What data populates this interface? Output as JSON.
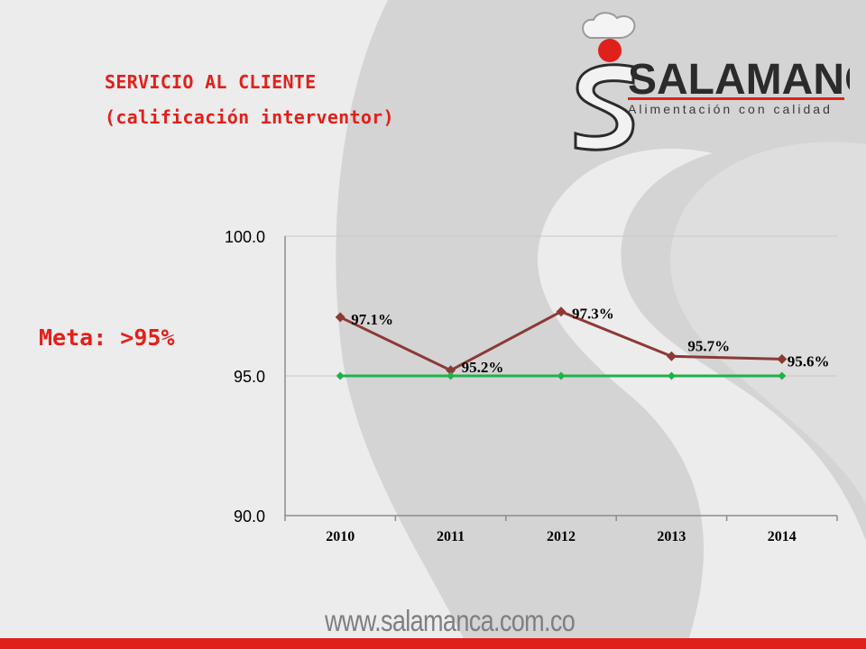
{
  "slide": {
    "title_line1": "SERVICIO AL CLIENTE",
    "title_line2": "(calificación interventor)",
    "meta": "Meta: >95%",
    "website": "www.salamanca.com.co"
  },
  "logo": {
    "brand": "SALAMANCA",
    "tagline": "Alimentación con calidad",
    "brand_color": "#e0201b",
    "dark_color": "#2b2b2b"
  },
  "colors": {
    "accent": "#e0201b",
    "series_score": "#8b3a36",
    "series_goal": "#1fb24a",
    "background": "#ececec"
  },
  "chart_data": {
    "type": "line",
    "categories": [
      "2010",
      "2011",
      "2012",
      "2013",
      "2014"
    ],
    "ylim": [
      90,
      100
    ],
    "yticks": [
      90,
      95,
      100
    ],
    "ytick_labels": [
      "90.0",
      "95.0",
      "100.0"
    ],
    "series": [
      {
        "values": [
          97.1,
          95.2,
          97.3,
          95.7,
          95.6
        ],
        "labels": [
          "97.1%",
          "95.2%",
          "97.3%",
          "95.7%",
          "95.6%"
        ],
        "color": "#8b3a36",
        "marker": "diamond"
      },
      {
        "values": [
          95,
          95,
          95,
          95,
          95
        ],
        "color": "#1fb24a",
        "marker": "diamond"
      }
    ],
    "grid": "horizontal",
    "legend": "none"
  }
}
